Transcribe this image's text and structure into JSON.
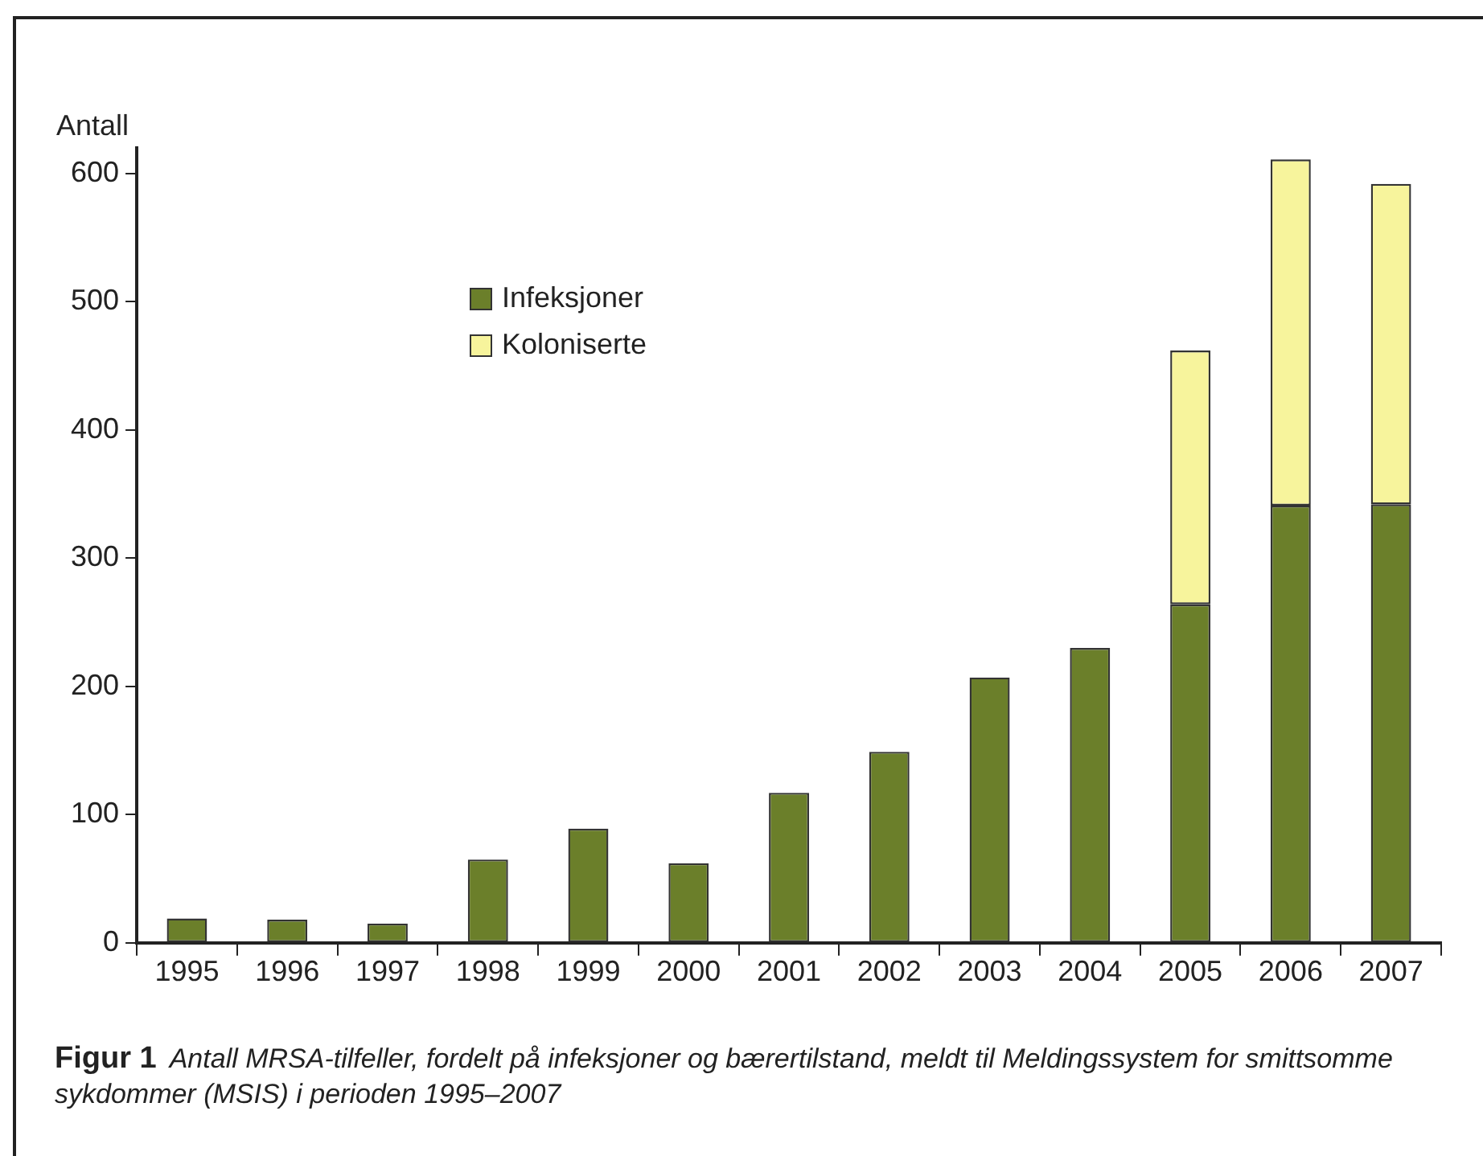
{
  "chart_data": {
    "type": "bar",
    "stacked": true,
    "ylabel": "Antall",
    "categories": [
      "1995",
      "1996",
      "1997",
      "1998",
      "1999",
      "2000",
      "2001",
      "2002",
      "2003",
      "2004",
      "2005",
      "2006",
      "2007"
    ],
    "series": [
      {
        "name": "Infeksjoner",
        "color": "#6b7f2a",
        "values": [
          19,
          18,
          15,
          65,
          89,
          62,
          117,
          149,
          207,
          230,
          264,
          341,
          342
        ]
      },
      {
        "name": "Koloniserte",
        "color": "#f7f49c",
        "values": [
          null,
          null,
          null,
          null,
          null,
          null,
          null,
          null,
          null,
          null,
          198,
          270,
          250
        ]
      }
    ],
    "ylim": [
      0,
      620
    ],
    "yticks": [
      0,
      100,
      200,
      300,
      400,
      500,
      600
    ],
    "grid": false,
    "legend": "top left",
    "annotations": [
      "Figur 1",
      "Antall MRSA-tilfeller, fordelt på infeksjoner og bærertilstand, meldt til Meldingssystem for smittsomme sykdommer (MSIS) i perioden 1995–2007"
    ]
  }
}
